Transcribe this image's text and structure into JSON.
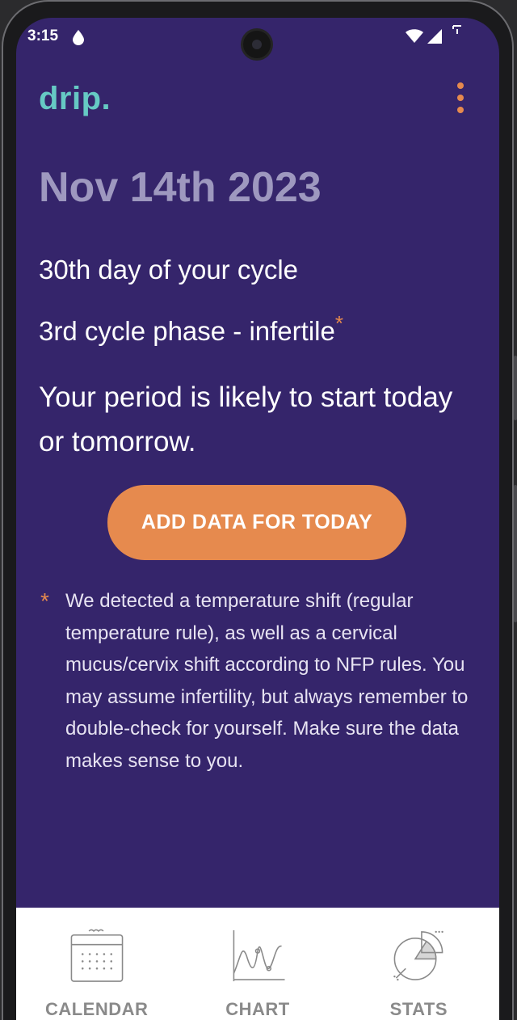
{
  "status_bar": {
    "time": "3:15",
    "icons": [
      "drop-icon",
      "wifi-icon",
      "signal-icon",
      "battery-icon"
    ]
  },
  "app": {
    "logo": "drip.",
    "menu_icon": "more-vertical-icon"
  },
  "main": {
    "date": "Nov 14th 2023",
    "cycle_day": "30th day of your cycle",
    "cycle_phase": "3rd cycle phase - infertile",
    "asterisk": "*",
    "prediction": "Your period is likely to start today or tomorrow.",
    "add_button_label": "ADD DATA FOR TODAY",
    "footnote_marker": "*",
    "footnote": "We detected a temperature shift (regular temperature rule), as well as a cervical mucus/cervix shift according to NFP rules. You may assume infertility, but always remember to double-check for yourself. Make sure the data makes sense to you."
  },
  "tabs": [
    {
      "label": "CALENDAR",
      "icon": "calendar-icon"
    },
    {
      "label": "CHART",
      "icon": "chart-icon"
    },
    {
      "label": "STATS",
      "icon": "stats-icon"
    }
  ],
  "colors": {
    "background": "#35256b",
    "accent": "#e68a4e",
    "logo": "#66c9c4",
    "date": "#9e98bf",
    "tab_inactive": "#8a8a8a"
  }
}
